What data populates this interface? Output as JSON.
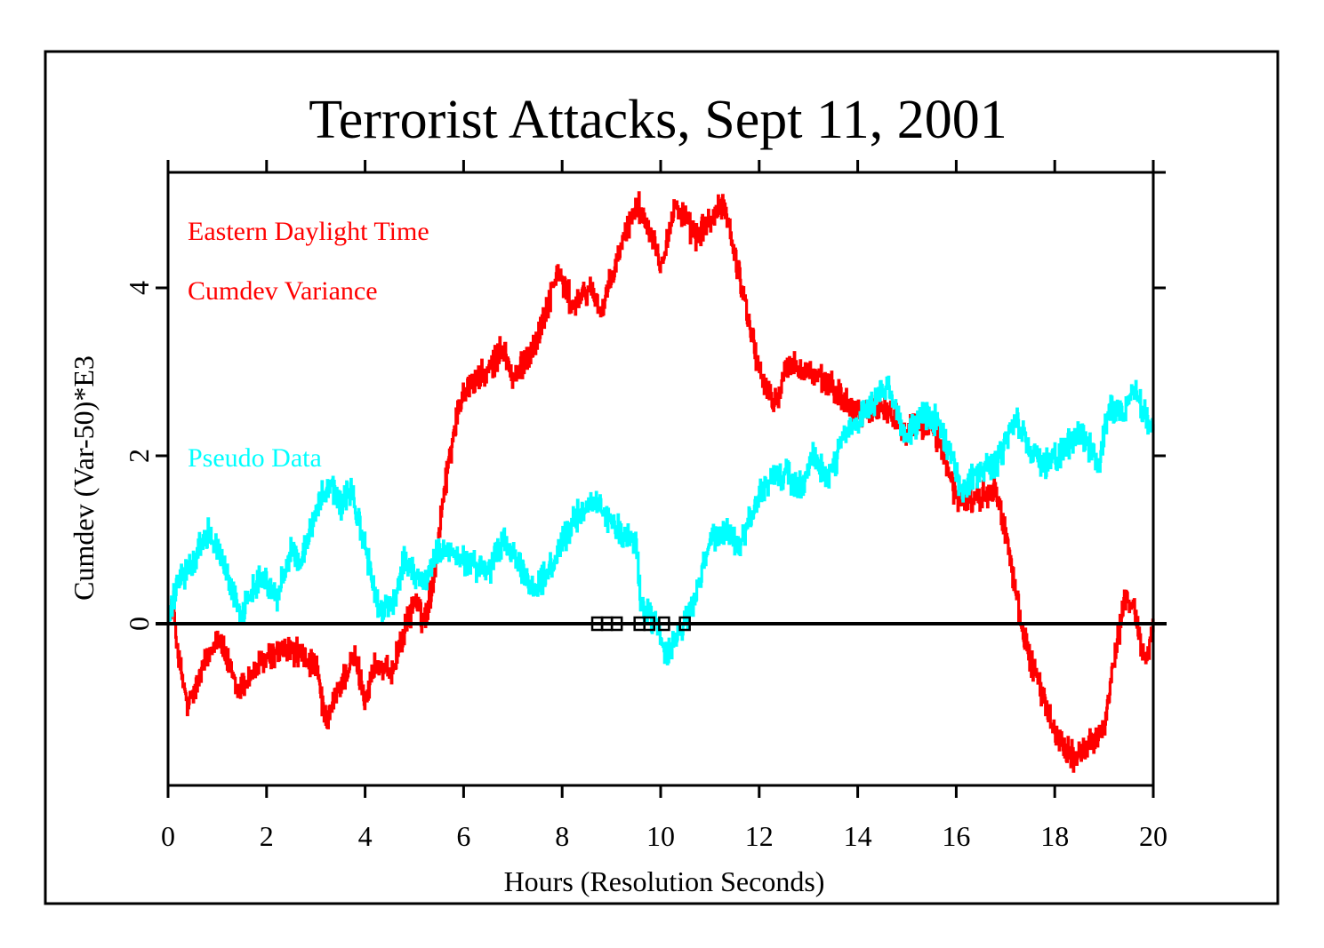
{
  "chart_data": {
    "type": "line",
    "title": "Terrorist Attacks, Sept 11, 2001",
    "xlabel": "Hours (Resolution Seconds)",
    "ylabel": "Cumdev (Var-50)*E3",
    "xlim": [
      0,
      20
    ],
    "ylim": [
      -1.93,
      5.36
    ],
    "x_ticks": [
      0,
      2,
      4,
      6,
      8,
      10,
      12,
      14,
      16,
      18,
      20
    ],
    "x_tick_labels": [
      "0",
      "2",
      "4",
      "6",
      "8",
      "10",
      "12",
      "14",
      "16",
      "18",
      "20"
    ],
    "y_ticks": [
      0,
      2,
      4
    ],
    "y_tick_labels": [
      "0",
      "2",
      "4"
    ],
    "grid": false,
    "reference_line": 0,
    "annotations": [
      {
        "text": "Eastern Daylight Time",
        "color": "#ff0000"
      },
      {
        "text": "Cumdev Variance",
        "color": "#ff0000"
      },
      {
        "text": "Pseudo Data",
        "color": "#00ffff"
      }
    ],
    "event_markers_hours": [
      8.71,
      8.91,
      9.11,
      9.57,
      9.77,
      10.07,
      10.49
    ],
    "series": [
      {
        "name": "Cumdev Variance",
        "color": "#ff0000",
        "x": [
          0,
          0.1,
          0.2,
          0.4,
          0.6,
          1.0,
          1.4,
          1.7,
          2.0,
          2.5,
          3.0,
          3.2,
          3.5,
          3.8,
          4.0,
          4.2,
          4.5,
          4.8,
          5.0,
          5.2,
          5.4,
          5.6,
          5.8,
          6.0,
          6.5,
          6.8,
          7.0,
          7.5,
          7.9,
          8.2,
          8.6,
          8.8,
          9.2,
          9.5,
          9.8,
          10.0,
          10.3,
          10.7,
          11.0,
          11.3,
          11.5,
          11.8,
          12.0,
          12.3,
          12.6,
          13.0,
          13.5,
          14.0,
          14.5,
          15.0,
          15.5,
          16.0,
          16.5,
          16.8,
          17.1,
          17.3,
          17.6,
          18.0,
          18.4,
          18.8,
          19.0,
          19.2,
          19.4,
          19.6,
          19.8,
          20.0
        ],
        "y": [
          0,
          0.3,
          -0.4,
          -1.0,
          -0.7,
          -0.1,
          -0.8,
          -0.6,
          -0.4,
          -0.3,
          -0.5,
          -1.2,
          -0.7,
          -0.4,
          -0.9,
          -0.5,
          -0.6,
          -0.1,
          0.3,
          0.0,
          0.6,
          1.6,
          2.3,
          2.8,
          3.0,
          3.3,
          2.9,
          3.4,
          4.2,
          3.8,
          4.0,
          3.7,
          4.5,
          5.0,
          4.7,
          4.3,
          5.0,
          4.6,
          4.8,
          5.0,
          4.4,
          3.6,
          3.0,
          2.6,
          3.1,
          3.0,
          2.8,
          2.5,
          2.6,
          2.3,
          2.4,
          1.5,
          1.5,
          1.6,
          0.8,
          0.0,
          -0.6,
          -1.3,
          -1.6,
          -1.4,
          -1.2,
          -0.5,
          0.3,
          0.2,
          -0.4,
          -0.1
        ]
      },
      {
        "name": "Pseudo Data",
        "color": "#00ffff",
        "x": [
          0,
          0.2,
          0.5,
          0.8,
          1.0,
          1.3,
          1.5,
          1.7,
          1.9,
          2.2,
          2.5,
          2.7,
          3.0,
          3.3,
          3.5,
          3.7,
          4.0,
          4.3,
          4.6,
          4.8,
          5.0,
          5.2,
          5.5,
          5.8,
          6.2,
          6.5,
          6.8,
          7.0,
          7.4,
          7.8,
          8.2,
          8.6,
          9.0,
          9.3,
          9.5,
          9.6,
          9.9,
          10.1,
          10.4,
          10.7,
          11.0,
          11.3,
          11.6,
          11.9,
          12.2,
          12.5,
          12.8,
          13.1,
          13.4,
          13.7,
          14.0,
          14.3,
          14.6,
          15.0,
          15.3,
          15.6,
          15.9,
          16.1,
          16.4,
          16.8,
          17.2,
          17.5,
          17.8,
          18.1,
          18.5,
          18.9,
          19.1,
          19.4,
          19.6,
          19.8,
          20.0
        ],
        "y": [
          0,
          0.5,
          0.7,
          1.1,
          0.9,
          0.4,
          0.1,
          0.4,
          0.6,
          0.3,
          0.9,
          0.7,
          1.4,
          1.7,
          1.4,
          1.6,
          0.9,
          0.1,
          0.3,
          0.8,
          0.6,
          0.5,
          0.9,
          0.8,
          0.7,
          0.6,
          1.0,
          0.8,
          0.4,
          0.7,
          1.2,
          1.5,
          1.2,
          1.0,
          1.0,
          0.2,
          0.0,
          -0.4,
          -0.1,
          0.3,
          1.0,
          1.1,
          0.9,
          1.4,
          1.7,
          1.8,
          1.6,
          2.0,
          1.7,
          2.2,
          2.4,
          2.6,
          2.8,
          2.2,
          2.5,
          2.4,
          2.0,
          1.6,
          1.8,
          1.9,
          2.4,
          2.1,
          1.9,
          2.0,
          2.3,
          1.9,
          2.6,
          2.5,
          2.8,
          2.5,
          2.3
        ]
      }
    ]
  }
}
